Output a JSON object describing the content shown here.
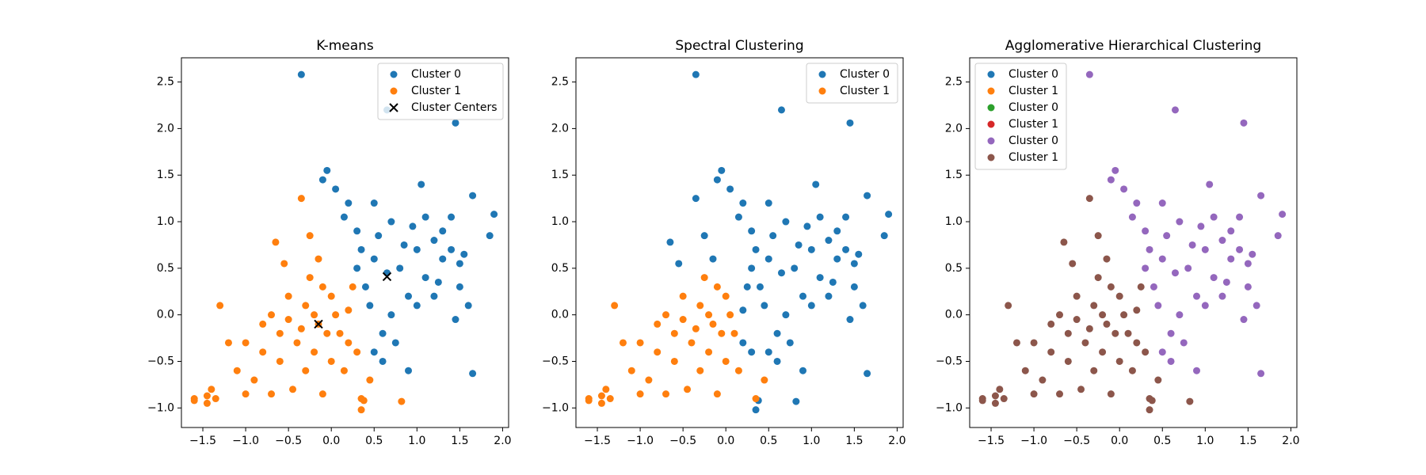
{
  "chart_data": [
    {
      "type": "scatter",
      "title": "K-means",
      "legend": "upper right",
      "xlim": [
        -1.75,
        2.07
      ],
      "ylim": [
        -1.21,
        2.76
      ],
      "xticks": [
        {
          "value": -1.5,
          "label": "−1.5"
        },
        {
          "value": -1.0,
          "label": "−1.0"
        },
        {
          "value": -0.5,
          "label": "−0.5"
        },
        {
          "value": 0.0,
          "label": "0.0"
        },
        {
          "value": 0.5,
          "label": "0.5"
        },
        {
          "value": 1.0,
          "label": "1.0"
        },
        {
          "value": 1.5,
          "label": "1.5"
        },
        {
          "value": 2.0,
          "label": "2.0"
        }
      ],
      "yticks": [
        {
          "value": -1.0,
          "label": "−1.0"
        },
        {
          "value": -0.5,
          "label": "−0.5"
        },
        {
          "value": 0.0,
          "label": "0.0"
        },
        {
          "value": 0.5,
          "label": "0.5"
        },
        {
          "value": 1.0,
          "label": "1.0"
        },
        {
          "value": 1.5,
          "label": "1.5"
        },
        {
          "value": 2.0,
          "label": "2.0"
        },
        {
          "value": 2.5,
          "label": "2.5"
        }
      ],
      "series": [
        {
          "name": "Cluster 0",
          "color": "#1f77b4",
          "marker": "o",
          "x": [
            -0.35,
            0.65,
            1.45,
            1.9,
            1.85,
            1.65,
            1.65,
            -0.05,
            -0.1,
            0.05,
            1.05,
            0.5,
            0.8,
            1.0,
            1.2,
            1.3,
            1.4,
            1.1,
            0.9,
            0.7,
            0.6,
            1.2,
            1.5,
            1.6,
            1.45,
            0.4,
            0.3,
            0.15,
            0.5,
            0.7,
            0.95,
            1.4,
            1.5,
            0.6,
            0.75,
            0.5,
            1.0,
            0.85,
            0.55,
            0.3,
            0.45,
            1.3,
            1.1,
            0.2,
            0.9,
            0.65,
            1.55,
            0.35,
            1.25
          ],
          "y": [
            2.58,
            2.2,
            2.06,
            1.08,
            0.85,
            1.28,
            -0.63,
            1.55,
            1.45,
            1.35,
            1.4,
            0.6,
            0.5,
            0.7,
            0.8,
            0.9,
            0.7,
            0.4,
            0.2,
            0.0,
            -0.2,
            0.2,
            0.3,
            0.1,
            -0.05,
            0.3,
            0.9,
            1.05,
            1.2,
            1.0,
            0.95,
            1.05,
            0.55,
            -0.5,
            -0.3,
            -0.4,
            0.1,
            0.75,
            0.85,
            0.5,
            0.1,
            0.6,
            1.05,
            1.2,
            -0.6,
            0.45,
            0.65,
            0.7,
            0.35
          ]
        },
        {
          "name": "Cluster 1",
          "color": "#ff7f0e",
          "marker": "o",
          "x": [
            -1.6,
            -1.6,
            -1.45,
            -1.4,
            -1.35,
            -1.45,
            0.35,
            0.82,
            0.38,
            -0.15,
            -0.3,
            0.0,
            -0.4,
            -0.6,
            -0.8,
            -0.2,
            0.1,
            0.2,
            -0.5,
            -0.7,
            -1.0,
            -1.1,
            -0.9,
            -0.3,
            0.0,
            0.15,
            -0.45,
            -0.1,
            0.3,
            -0.25,
            -0.55,
            -0.35,
            -0.25,
            -0.65,
            -1.3,
            -1.2,
            -0.1,
            0.25,
            -0.05,
            -0.2,
            -0.35,
            0.05,
            -0.6,
            -0.8,
            -0.5,
            0.2,
            -0.15,
            -1.0,
            0.45,
            0.35,
            -0.7
          ],
          "y": [
            -0.9,
            -0.92,
            -0.87,
            -0.8,
            -0.9,
            -0.95,
            -1.02,
            -0.93,
            -0.92,
            -0.1,
            0.1,
            0.2,
            -0.3,
            -0.5,
            -0.4,
            -0.4,
            -0.2,
            0.05,
            0.2,
            0.0,
            -0.3,
            -0.6,
            -0.7,
            -0.6,
            -0.5,
            -0.6,
            -0.8,
            -0.85,
            -0.4,
            0.4,
            0.55,
            1.25,
            0.85,
            0.78,
            0.1,
            -0.3,
            0.3,
            0.3,
            -0.2,
            0.0,
            -0.15,
            0.0,
            -0.2,
            -0.1,
            -0.05,
            -0.3,
            0.6,
            -0.85,
            -0.7,
            -0.9,
            -0.85
          ]
        },
        {
          "name": "Cluster Centers",
          "color": "#000000",
          "marker": "x",
          "x": [
            0.65,
            -0.15
          ],
          "y": [
            0.41,
            -0.1
          ]
        }
      ]
    },
    {
      "type": "scatter",
      "title": "Spectral Clustering",
      "legend": "upper right",
      "xlim": [
        -1.75,
        2.07
      ],
      "ylim": [
        -1.21,
        2.76
      ],
      "xticks": [
        {
          "value": -1.5,
          "label": "−1.5"
        },
        {
          "value": -1.0,
          "label": "−1.0"
        },
        {
          "value": -0.5,
          "label": "−0.5"
        },
        {
          "value": 0.0,
          "label": "0.0"
        },
        {
          "value": 0.5,
          "label": "0.5"
        },
        {
          "value": 1.0,
          "label": "1.0"
        },
        {
          "value": 1.5,
          "label": "1.5"
        },
        {
          "value": 2.0,
          "label": "2.0"
        }
      ],
      "yticks": [
        {
          "value": -1.0,
          "label": "−1.0"
        },
        {
          "value": -0.5,
          "label": "−0.5"
        },
        {
          "value": 0.0,
          "label": "0.0"
        },
        {
          "value": 0.5,
          "label": "0.5"
        },
        {
          "value": 1.0,
          "label": "1.0"
        },
        {
          "value": 1.5,
          "label": "1.5"
        },
        {
          "value": 2.0,
          "label": "2.0"
        },
        {
          "value": 2.5,
          "label": "2.5"
        }
      ],
      "series": [
        {
          "name": "Cluster 0",
          "color": "#1f77b4",
          "marker": "o",
          "x": [
            -0.35,
            0.65,
            1.45,
            1.9,
            1.85,
            1.65,
            1.65,
            -0.05,
            -0.1,
            0.05,
            1.05,
            0.5,
            0.8,
            1.0,
            1.2,
            1.3,
            1.4,
            1.1,
            0.9,
            0.7,
            0.6,
            1.2,
            1.5,
            1.6,
            1.45,
            0.4,
            0.3,
            0.15,
            0.5,
            0.7,
            0.95,
            1.4,
            1.5,
            0.6,
            0.75,
            0.5,
            1.0,
            0.85,
            0.55,
            0.3,
            0.45,
            1.3,
            1.1,
            0.2,
            0.9,
            0.65,
            1.55,
            0.35,
            1.25,
            0.35,
            0.82,
            0.38,
            0.2,
            0.3,
            -0.55,
            -0.35,
            -0.25,
            -0.65,
            0.25,
            0.2,
            -0.15
          ],
          "y": [
            2.58,
            2.2,
            2.06,
            1.08,
            0.85,
            1.28,
            -0.63,
            1.55,
            1.45,
            1.35,
            1.4,
            0.6,
            0.5,
            0.7,
            0.8,
            0.9,
            0.7,
            0.4,
            0.2,
            0.0,
            -0.2,
            0.2,
            0.3,
            0.1,
            -0.05,
            0.3,
            0.9,
            1.05,
            1.2,
            1.0,
            0.95,
            1.05,
            0.55,
            -0.5,
            -0.3,
            -0.4,
            0.1,
            0.75,
            0.85,
            0.5,
            0.1,
            0.6,
            1.05,
            1.2,
            -0.6,
            0.45,
            0.65,
            0.7,
            0.35,
            -1.02,
            -0.93,
            -0.92,
            0.05,
            -0.4,
            0.55,
            1.25,
            0.85,
            0.78,
            0.3,
            -0.3,
            0.6
          ]
        },
        {
          "name": "Cluster 1",
          "color": "#ff7f0e",
          "marker": "o",
          "x": [
            -1.6,
            -1.6,
            -1.45,
            -1.4,
            -1.35,
            -1.45,
            -0.15,
            -0.3,
            0.0,
            -0.4,
            -0.6,
            -0.8,
            -0.2,
            0.1,
            -0.5,
            -0.7,
            -1.0,
            -1.1,
            -0.9,
            -0.3,
            0.0,
            0.15,
            -0.45,
            -0.1,
            -0.25,
            -1.3,
            -1.2,
            -0.1,
            -0.05,
            -0.2,
            -0.35,
            0.05,
            -0.6,
            -0.8,
            -0.5,
            -1.0,
            0.45,
            0.35,
            -0.7
          ],
          "y": [
            -0.9,
            -0.92,
            -0.87,
            -0.8,
            -0.9,
            -0.95,
            -0.1,
            0.1,
            0.2,
            -0.3,
            -0.5,
            -0.4,
            -0.4,
            -0.2,
            0.2,
            0.0,
            -0.3,
            -0.6,
            -0.7,
            -0.6,
            -0.5,
            -0.6,
            -0.8,
            -0.85,
            0.4,
            0.1,
            -0.3,
            0.3,
            -0.2,
            0.0,
            -0.15,
            0.0,
            -0.2,
            -0.1,
            -0.05,
            -0.85,
            -0.7,
            -0.9,
            -0.85
          ]
        }
      ]
    },
    {
      "type": "scatter",
      "title": "Agglomerative Hierarchical Clustering",
      "legend": "upper left",
      "xlim": [
        -1.75,
        2.07
      ],
      "ylim": [
        -1.21,
        2.76
      ],
      "xticks": [
        {
          "value": -1.5,
          "label": "−1.5"
        },
        {
          "value": -1.0,
          "label": "−1.0"
        },
        {
          "value": -0.5,
          "label": "−0.5"
        },
        {
          "value": 0.0,
          "label": "0.0"
        },
        {
          "value": 0.5,
          "label": "0.5"
        },
        {
          "value": 1.0,
          "label": "1.0"
        },
        {
          "value": 1.5,
          "label": "1.5"
        },
        {
          "value": 2.0,
          "label": "2.0"
        }
      ],
      "yticks": [
        {
          "value": -1.0,
          "label": "−1.0"
        },
        {
          "value": -0.5,
          "label": "−0.5"
        },
        {
          "value": 0.0,
          "label": "0.0"
        },
        {
          "value": 0.5,
          "label": "0.5"
        },
        {
          "value": 1.0,
          "label": "1.0"
        },
        {
          "value": 1.5,
          "label": "1.5"
        },
        {
          "value": 2.0,
          "label": "2.0"
        },
        {
          "value": 2.5,
          "label": "2.5"
        }
      ],
      "series": [
        {
          "name": "Cluster 0",
          "color": "#1f77b4",
          "marker": "o",
          "x": [],
          "y": []
        },
        {
          "name": "Cluster 1",
          "color": "#ff7f0e",
          "marker": "o",
          "x": [],
          "y": []
        },
        {
          "name": "Cluster 0",
          "color": "#2ca02c",
          "marker": "o",
          "x": [],
          "y": []
        },
        {
          "name": "Cluster 1",
          "color": "#d62728",
          "marker": "o",
          "x": [],
          "y": []
        },
        {
          "name": "Cluster 0",
          "color": "#9467bd",
          "marker": "o",
          "x": [
            -0.35,
            0.65,
            1.45,
            1.9,
            1.85,
            1.65,
            1.65,
            -0.05,
            -0.1,
            0.05,
            1.05,
            0.5,
            0.8,
            1.0,
            1.2,
            1.3,
            1.4,
            1.1,
            0.9,
            0.7,
            0.6,
            1.2,
            1.5,
            1.6,
            1.45,
            0.4,
            0.3,
            0.15,
            0.5,
            0.7,
            0.95,
            1.4,
            1.5,
            0.6,
            0.75,
            0.5,
            1.0,
            0.85,
            0.55,
            0.3,
            0.45,
            1.3,
            1.1,
            0.2,
            0.9,
            0.65,
            1.55,
            0.35,
            1.25
          ],
          "y": [
            2.58,
            2.2,
            2.06,
            1.08,
            0.85,
            1.28,
            -0.63,
            1.55,
            1.45,
            1.35,
            1.4,
            0.6,
            0.5,
            0.7,
            0.8,
            0.9,
            0.7,
            0.4,
            0.2,
            0.0,
            -0.2,
            0.2,
            0.3,
            0.1,
            -0.05,
            0.3,
            0.9,
            1.05,
            1.2,
            1.0,
            0.95,
            1.05,
            0.55,
            -0.5,
            -0.3,
            -0.4,
            0.1,
            0.75,
            0.85,
            0.5,
            0.1,
            0.6,
            1.05,
            1.2,
            -0.6,
            0.45,
            0.65,
            0.7,
            0.35
          ]
        },
        {
          "name": "Cluster 1",
          "color": "#8c564b",
          "marker": "o",
          "x": [
            -1.6,
            -1.6,
            -1.45,
            -1.4,
            -1.35,
            -1.45,
            0.35,
            0.82,
            0.38,
            -0.15,
            -0.3,
            0.0,
            -0.4,
            -0.6,
            -0.8,
            -0.2,
            0.1,
            0.2,
            -0.5,
            -0.7,
            -1.0,
            -1.1,
            -0.9,
            -0.3,
            0.0,
            0.15,
            -0.45,
            -0.1,
            0.3,
            -0.25,
            -0.55,
            -0.35,
            -0.25,
            -0.65,
            -1.3,
            -1.2,
            -0.1,
            0.25,
            -0.05,
            -0.2,
            -0.35,
            0.05,
            -0.6,
            -0.8,
            -0.5,
            0.2,
            -0.15,
            -1.0,
            0.45,
            0.35,
            -0.7
          ],
          "y": [
            -0.9,
            -0.92,
            -0.87,
            -0.8,
            -0.9,
            -0.95,
            -1.02,
            -0.93,
            -0.92,
            -0.1,
            0.1,
            0.2,
            -0.3,
            -0.5,
            -0.4,
            -0.4,
            -0.2,
            0.05,
            0.2,
            0.0,
            -0.3,
            -0.6,
            -0.7,
            -0.6,
            -0.5,
            -0.6,
            -0.8,
            -0.85,
            -0.4,
            0.4,
            0.55,
            1.25,
            0.85,
            0.78,
            0.1,
            -0.3,
            0.3,
            0.3,
            -0.2,
            0.0,
            -0.15,
            0.0,
            -0.2,
            -0.1,
            -0.05,
            -0.3,
            0.6,
            -0.85,
            -0.7,
            -0.9,
            -0.85
          ]
        }
      ]
    }
  ]
}
